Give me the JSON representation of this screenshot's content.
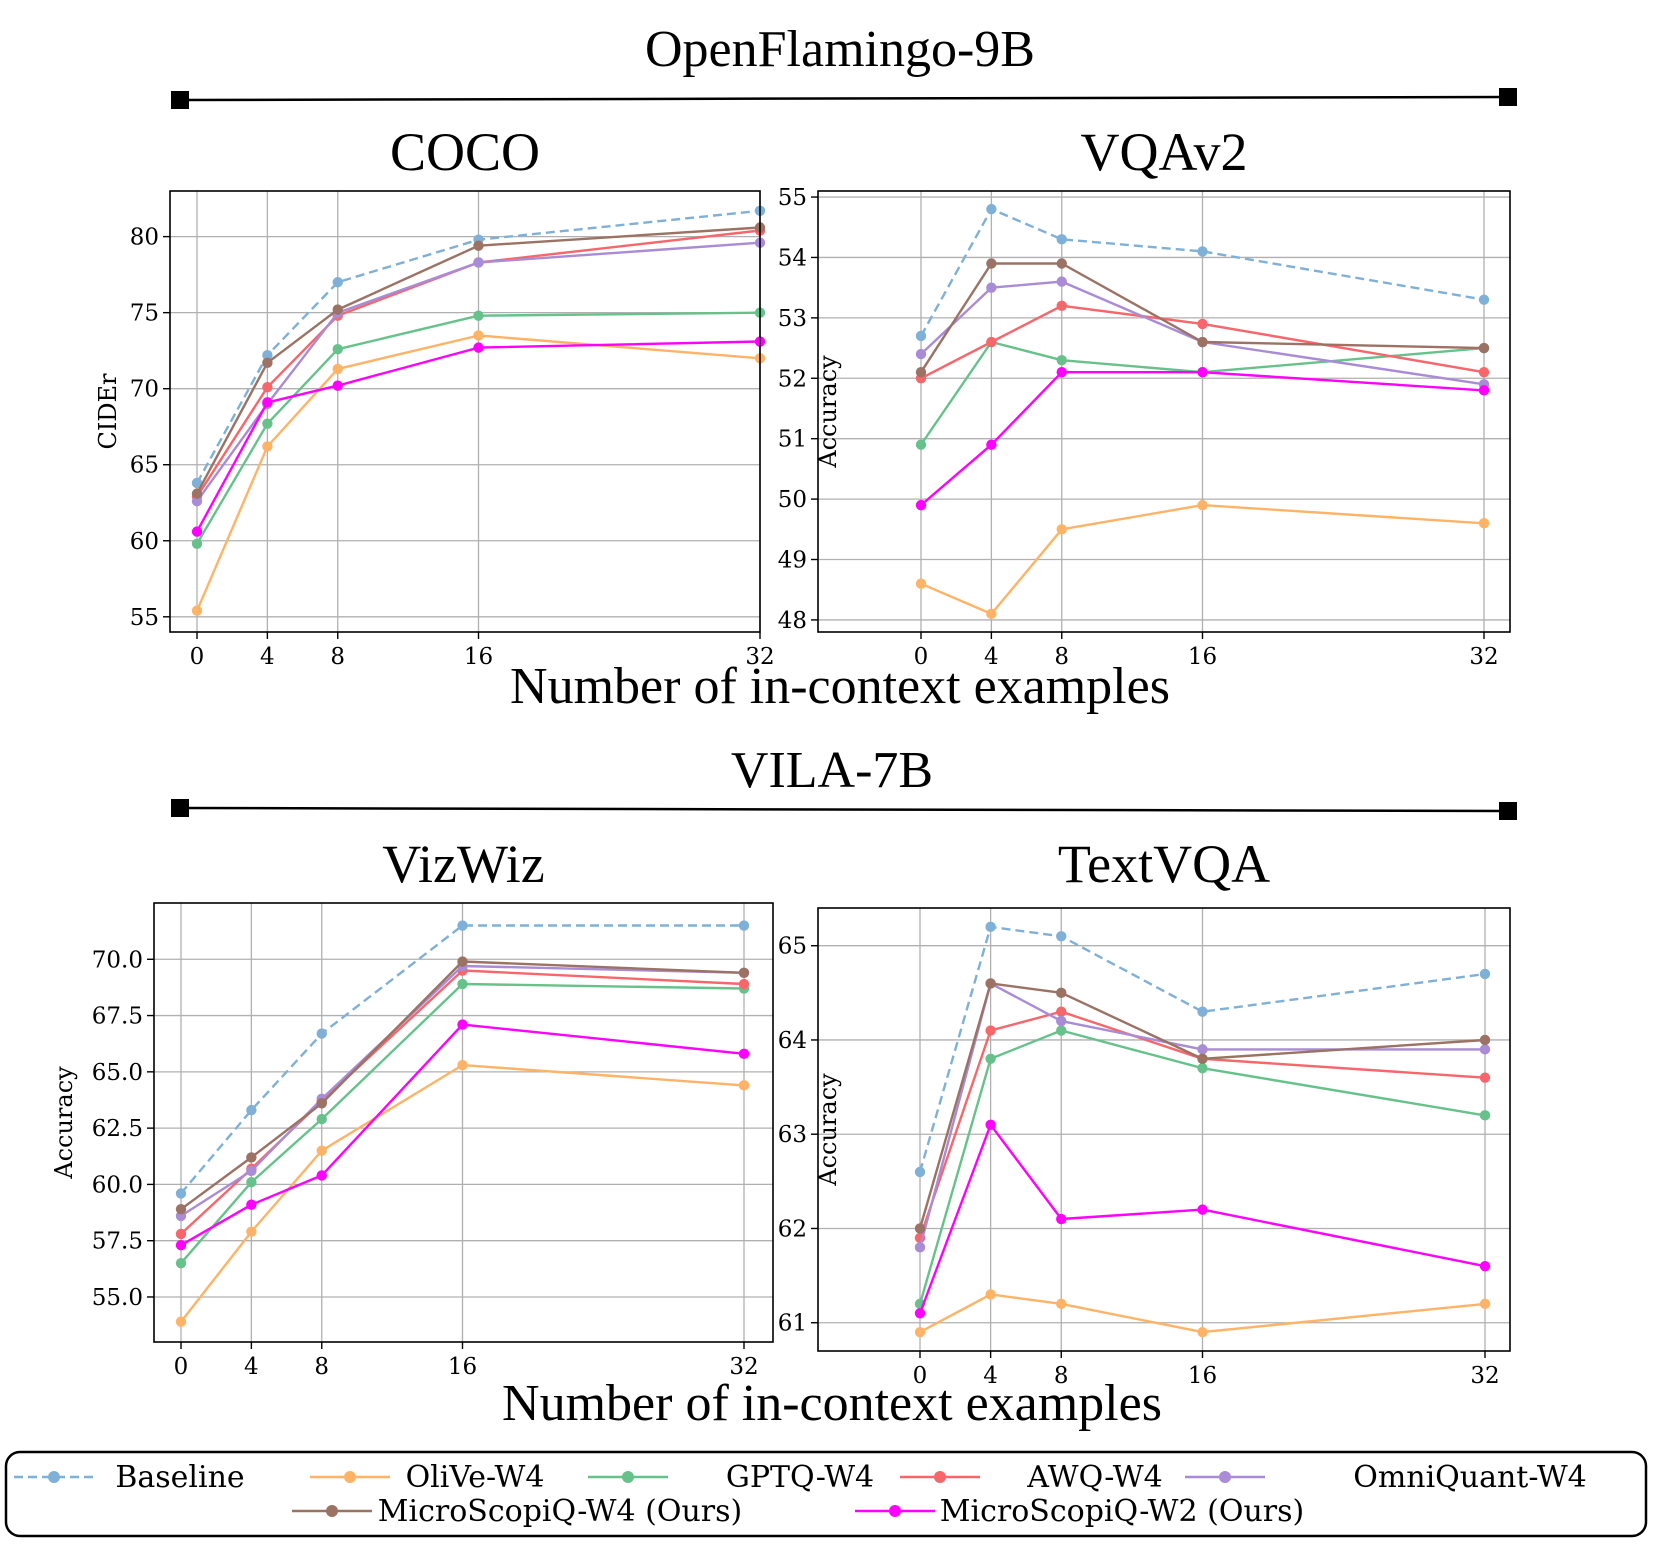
{
  "groups": [
    {
      "title": "OpenFlamingo-9B",
      "xlabel": "Number of in-context examples"
    },
    {
      "title": "VILA-7B",
      "xlabel": "Number of in-context examples"
    }
  ],
  "legend": {
    "entries": [
      {
        "key": "baseline",
        "label": "Baseline"
      },
      {
        "key": "olive",
        "label": "OliVe-W4"
      },
      {
        "key": "gptq",
        "label": "GPTQ-W4"
      },
      {
        "key": "awq",
        "label": "AWQ-W4"
      },
      {
        "key": "omniquant",
        "label": "OmniQuant-W4"
      },
      {
        "key": "msq4",
        "label": "MicroScopiQ-W4 (Ours)"
      },
      {
        "key": "msq2",
        "label": "MicroScopiQ-W2 (Ours)"
      }
    ]
  },
  "colors": {
    "baseline": "#7fb0d8",
    "olive": "#ffb366",
    "gptq": "#66c28a",
    "awq": "#f7666b",
    "omniquant": "#a98bd6",
    "msq4": "#9b7264",
    "msq2": "#ff00ff",
    "grid": "#b0b0b0",
    "frame": "#000000"
  },
  "chart_data": [
    {
      "type": "line",
      "group": "OpenFlamingo-9B",
      "title": "COCO",
      "xlabel": "",
      "ylabel": "CIDEr",
      "x": [
        0,
        4,
        8,
        16,
        32
      ],
      "xticks": [
        "0",
        "4",
        "8",
        "16",
        "32"
      ],
      "ylim": [
        54,
        83
      ],
      "yticks": [
        55,
        60,
        65,
        70,
        75,
        80
      ],
      "yticklabels": [
        "55",
        "60",
        "65",
        "70",
        "75",
        "80"
      ],
      "grid": true,
      "series": [
        {
          "key": "baseline",
          "name": "Baseline",
          "dashed": true,
          "values": [
            63.8,
            72.2,
            77.0,
            79.8,
            81.7
          ]
        },
        {
          "key": "olive",
          "name": "OliVe-W4",
          "values": [
            55.4,
            66.2,
            71.3,
            73.5,
            72.0
          ]
        },
        {
          "key": "gptq",
          "name": "GPTQ-W4",
          "values": [
            59.8,
            67.7,
            72.6,
            74.8,
            75.0
          ]
        },
        {
          "key": "awq",
          "name": "AWQ-W4",
          "values": [
            62.9,
            70.1,
            74.8,
            78.3,
            80.4
          ]
        },
        {
          "key": "omniquant",
          "name": "OmniQuant-W4",
          "values": [
            62.6,
            69.0,
            75.0,
            78.3,
            79.6
          ]
        },
        {
          "key": "msq4",
          "name": "MicroScopiQ-W4 (Ours)",
          "values": [
            63.1,
            71.7,
            75.2,
            79.4,
            80.6
          ]
        },
        {
          "key": "msq2",
          "name": "MicroScopiQ-W2 (Ours)",
          "values": [
            60.6,
            69.1,
            70.2,
            72.7,
            73.1
          ]
        }
      ]
    },
    {
      "type": "line",
      "group": "OpenFlamingo-9B",
      "title": "VQAv2",
      "xlabel": "",
      "ylabel": "Accuracy",
      "x": [
        0,
        4,
        8,
        16,
        32
      ],
      "xticks": [
        "0",
        "4",
        "8",
        "16",
        "32"
      ],
      "ylim": [
        47.8,
        55.1
      ],
      "yticks": [
        48,
        49,
        50,
        51,
        52,
        53,
        54,
        55
      ],
      "yticklabels": [
        "48",
        "49",
        "50",
        "51",
        "52",
        "53",
        "54",
        "55"
      ],
      "grid": true,
      "series": [
        {
          "key": "baseline",
          "name": "Baseline",
          "dashed": true,
          "values": [
            52.7,
            54.8,
            54.3,
            54.1,
            53.3
          ]
        },
        {
          "key": "olive",
          "name": "OliVe-W4",
          "values": [
            48.6,
            48.1,
            49.5,
            49.9,
            49.6
          ]
        },
        {
          "key": "gptq",
          "name": "GPTQ-W4",
          "values": [
            50.9,
            52.6,
            52.3,
            52.1,
            52.5
          ]
        },
        {
          "key": "awq",
          "name": "AWQ-W4",
          "values": [
            52.0,
            52.6,
            53.2,
            52.9,
            52.1
          ]
        },
        {
          "key": "omniquant",
          "name": "OmniQuant-W4",
          "values": [
            52.4,
            53.5,
            53.6,
            52.6,
            51.9
          ]
        },
        {
          "key": "msq4",
          "name": "MicroScopiQ-W4 (Ours)",
          "values": [
            52.1,
            53.9,
            53.9,
            52.6,
            52.5
          ]
        },
        {
          "key": "msq2",
          "name": "MicroScopiQ-W2 (Ours)",
          "values": [
            49.9,
            50.9,
            52.1,
            52.1,
            51.8
          ]
        }
      ]
    },
    {
      "type": "line",
      "group": "VILA-7B",
      "title": "VizWiz",
      "xlabel": "",
      "ylabel": "Accuracy",
      "x": [
        0,
        4,
        8,
        16,
        32
      ],
      "xticks": [
        "0",
        "4",
        "8",
        "16",
        "32"
      ],
      "ylim": [
        53.0,
        72.5
      ],
      "yticks": [
        55.0,
        57.5,
        60.0,
        62.5,
        65.0,
        67.5,
        70.0
      ],
      "yticklabels": [
        "55.0",
        "57.5",
        "60.0",
        "62.5",
        "65.0",
        "67.5",
        "70.0"
      ],
      "grid": true,
      "series": [
        {
          "key": "baseline",
          "name": "Baseline",
          "dashed": true,
          "values": [
            59.6,
            63.3,
            66.7,
            71.5,
            71.5
          ]
        },
        {
          "key": "olive",
          "name": "OliVe-W4",
          "values": [
            53.9,
            57.9,
            61.5,
            65.3,
            64.4
          ]
        },
        {
          "key": "gptq",
          "name": "GPTQ-W4",
          "values": [
            56.5,
            60.1,
            62.9,
            68.9,
            68.7
          ]
        },
        {
          "key": "awq",
          "name": "AWQ-W4",
          "values": [
            57.8,
            60.7,
            63.7,
            69.5,
            68.9
          ]
        },
        {
          "key": "omniquant",
          "name": "OmniQuant-W4",
          "values": [
            58.6,
            60.6,
            63.8,
            69.7,
            69.4
          ]
        },
        {
          "key": "msq4",
          "name": "MicroScopiQ-W4 (Ours)",
          "values": [
            58.9,
            61.2,
            63.6,
            69.9,
            69.4
          ]
        },
        {
          "key": "msq2",
          "name": "MicroScopiQ-W2 (Ours)",
          "values": [
            57.3,
            59.1,
            60.4,
            67.1,
            65.8
          ]
        }
      ]
    },
    {
      "type": "line",
      "group": "VILA-7B",
      "title": "TextVQA",
      "xlabel": "",
      "ylabel": "Accuracy",
      "x": [
        0,
        4,
        8,
        16,
        32
      ],
      "xticks": [
        "0",
        "4",
        "8",
        "16",
        "32"
      ],
      "ylim": [
        60.7,
        65.4
      ],
      "yticks": [
        61,
        62,
        63,
        64,
        65
      ],
      "yticklabels": [
        "61",
        "62",
        "63",
        "64",
        "65"
      ],
      "grid": true,
      "series": [
        {
          "key": "baseline",
          "name": "Baseline",
          "dashed": true,
          "values": [
            62.6,
            65.2,
            65.1,
            64.3,
            64.7
          ]
        },
        {
          "key": "olive",
          "name": "OliVe-W4",
          "values": [
            60.9,
            61.3,
            61.2,
            60.9,
            61.2
          ]
        },
        {
          "key": "gptq",
          "name": "GPTQ-W4",
          "values": [
            61.2,
            63.8,
            64.1,
            63.7,
            63.2
          ]
        },
        {
          "key": "awq",
          "name": "AWQ-W4",
          "values": [
            61.9,
            64.1,
            64.3,
            63.8,
            63.6
          ]
        },
        {
          "key": "omniquant",
          "name": "OmniQuant-W4",
          "values": [
            61.8,
            64.6,
            64.2,
            63.9,
            63.9
          ]
        },
        {
          "key": "msq4",
          "name": "MicroScopiQ-W4 (Ours)",
          "values": [
            62.0,
            64.6,
            64.5,
            63.8,
            64.0
          ]
        },
        {
          "key": "msq2",
          "name": "MicroScopiQ-W2 (Ours)",
          "values": [
            61.1,
            63.1,
            62.1,
            62.2,
            61.6
          ]
        }
      ]
    }
  ]
}
